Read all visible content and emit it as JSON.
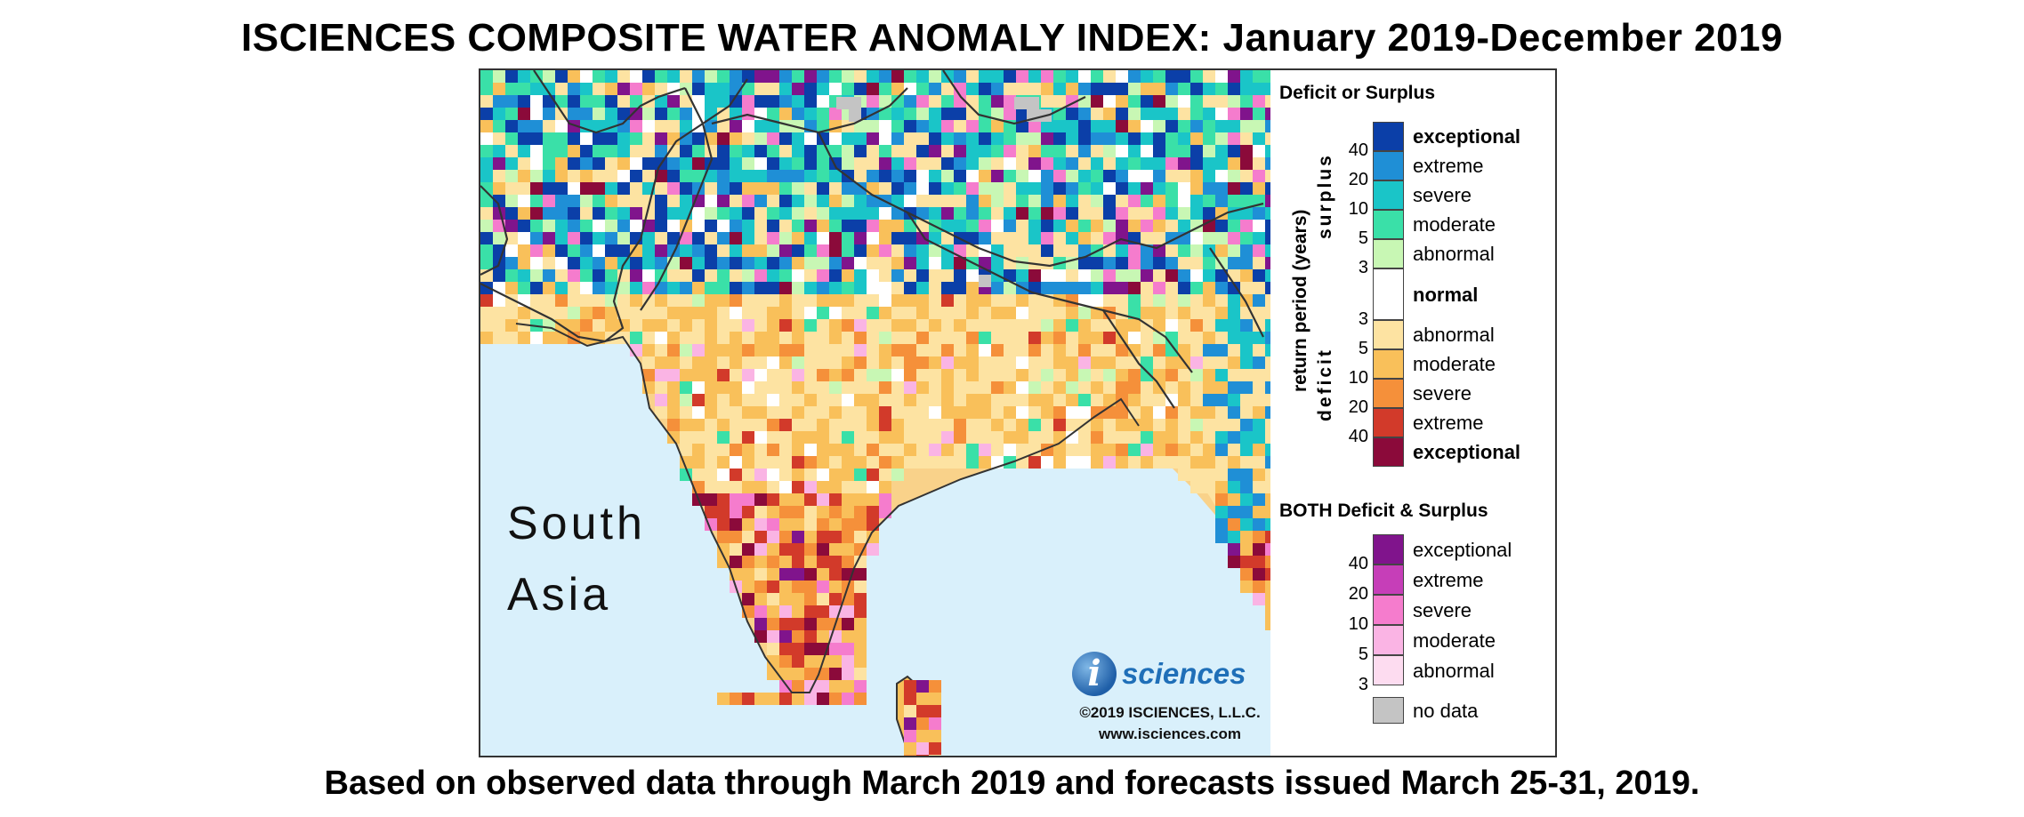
{
  "title": "ISCIENCES COMPOSITE WATER ANOMALY INDEX: January 2019-December 2019",
  "footer": "Based on observed data through March 2019 and forecasts issued March 25-31, 2019.",
  "map": {
    "region_label_line1": "South",
    "region_label_line2": "Asia",
    "logo_letter": "i",
    "logo_text": "sciences",
    "copyright": "©2019 ISCIENCES, L.L.C.",
    "website": "www.isciences.com",
    "colors": {
      "ocean": "#d9f0fb",
      "border": "#333333"
    }
  },
  "legend": {
    "deficit_surplus_heading": "Deficit or Surplus",
    "both_heading": "BOTH Deficit & Surplus",
    "axis_title": "return period (years)",
    "surplus_label": "surplus",
    "deficit_label": "deficit",
    "surplus_items": [
      {
        "label": "exceptional",
        "color": "#0b3fa8",
        "bold": true
      },
      {
        "label": "extreme",
        "color": "#1f8fd6",
        "bold": false
      },
      {
        "label": "severe",
        "color": "#1ac5c8",
        "bold": false
      },
      {
        "label": "moderate",
        "color": "#3ae0a8",
        "bold": false
      },
      {
        "label": "abnormal",
        "color": "#c8f7b4",
        "bold": false
      }
    ],
    "normal": {
      "label": "normal",
      "color": "#ffffff"
    },
    "deficit_items": [
      {
        "label": "abnormal",
        "color": "#fde3a2",
        "bold": false
      },
      {
        "label": "moderate",
        "color": "#f9c05a",
        "bold": false
      },
      {
        "label": "severe",
        "color": "#f5903a",
        "bold": false
      },
      {
        "label": "extreme",
        "color": "#d23a2a",
        "bold": false
      },
      {
        "label": "exceptional",
        "color": "#8b0a3a",
        "bold": true
      }
    ],
    "both_items": [
      {
        "label": "exceptional",
        "color": "#80148c"
      },
      {
        "label": "extreme",
        "color": "#c63eb8"
      },
      {
        "label": "severe",
        "color": "#f57ccd"
      },
      {
        "label": "moderate",
        "color": "#fab4e4"
      },
      {
        "label": "abnormal",
        "color": "#fddcf0"
      }
    ],
    "no_data": {
      "label": "no data",
      "color": "#c4c4c4"
    },
    "surplus_ticks": [
      "40",
      "20",
      "10",
      "5",
      "3"
    ],
    "deficit_ticks": [
      "3",
      "5",
      "10",
      "20",
      "40"
    ],
    "both_ticks": [
      "40",
      "20",
      "10",
      "5",
      "3"
    ]
  }
}
